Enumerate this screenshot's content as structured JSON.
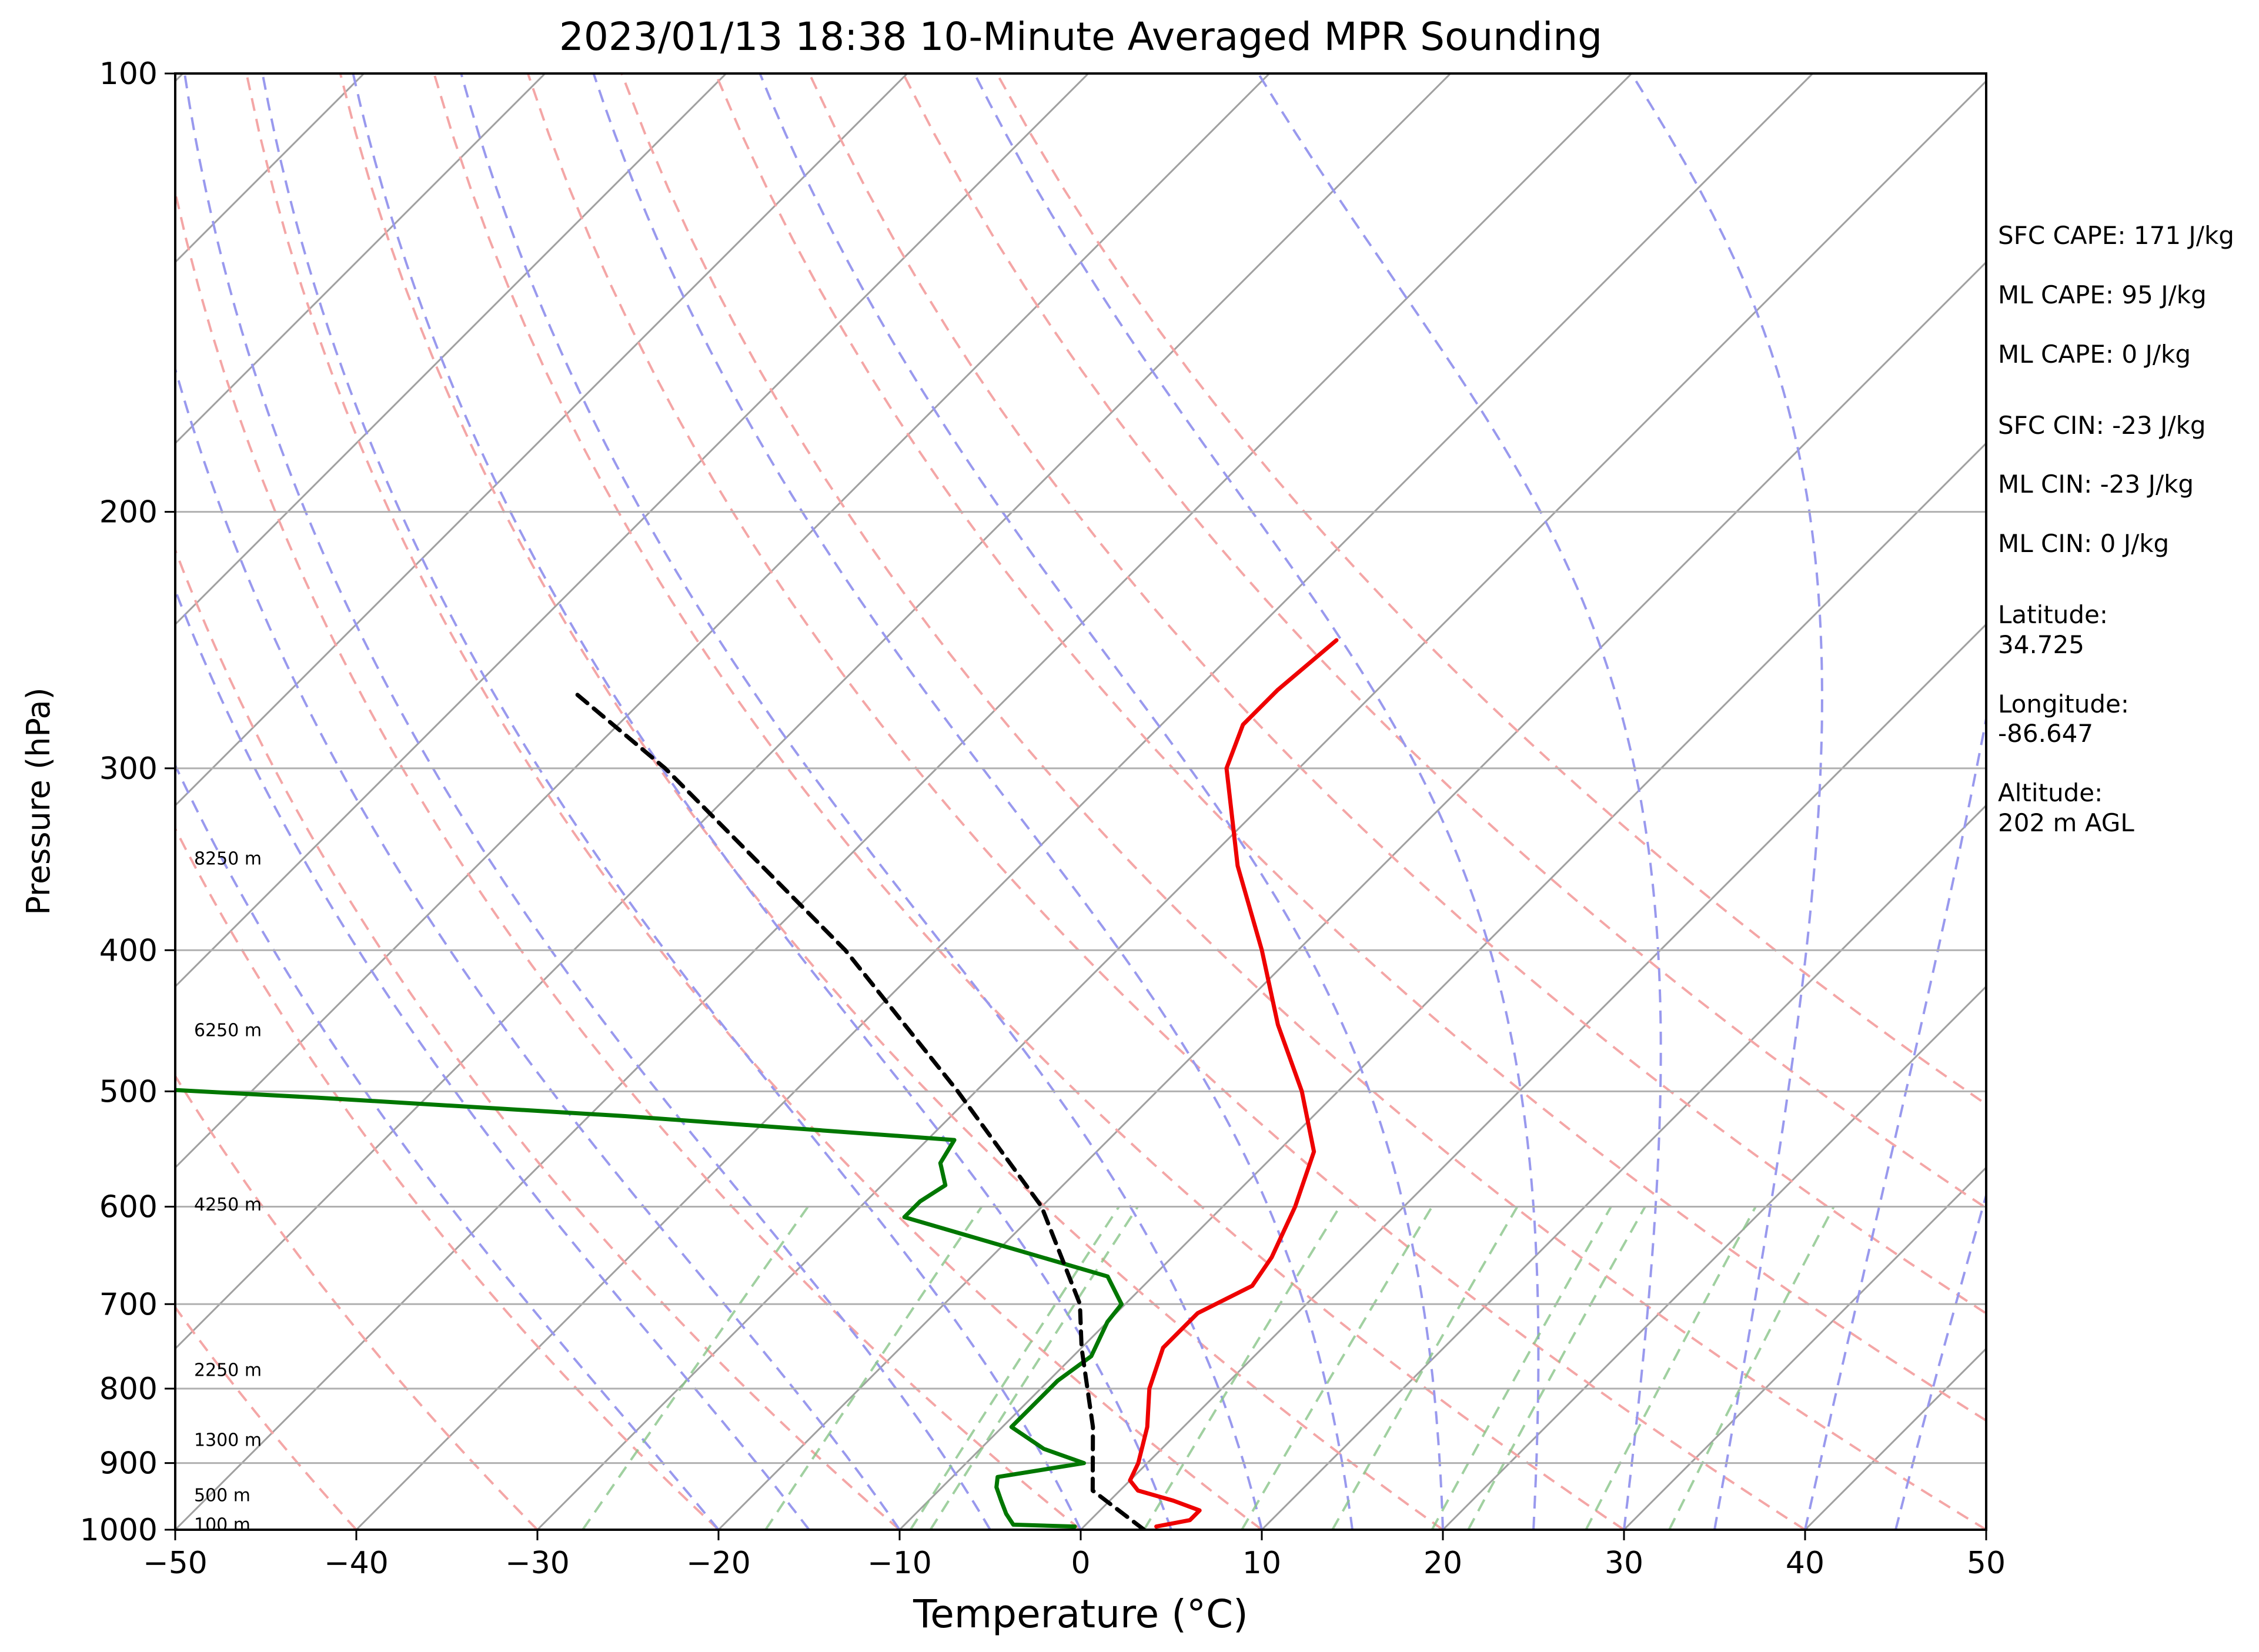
{
  "chart_data": {
    "type": "line",
    "title": "2023/01/13 18:38 10-Minute Averaged MPR Sounding",
    "xlabel": "Temperature (°C)",
    "ylabel": "Pressure (hPa)",
    "xlim": [
      -50,
      50
    ],
    "ylim": [
      1000,
      100
    ],
    "y_scale": "log",
    "x_ticks": [
      "−50",
      "−40",
      "−30",
      "−20",
      "−10",
      "0",
      "10",
      "20",
      "30",
      "40",
      "50"
    ],
    "x_tick_values": [
      -50,
      -40,
      -30,
      -20,
      -10,
      0,
      10,
      20,
      30,
      40,
      50
    ],
    "y_ticks": [
      "100",
      "200",
      "300",
      "400",
      "500",
      "600",
      "700",
      "800",
      "900",
      "1000"
    ],
    "y_tick_values": [
      100,
      200,
      300,
      400,
      500,
      600,
      700,
      800,
      900,
      1000
    ],
    "grid": true,
    "skew": true,
    "background_lines": {
      "isotherms_color": "#a0a0a0",
      "dry_adiabats_color": "#f4a6a6",
      "moist_adiabats_color": "#9999ee",
      "mixing_ratio_color": "#88c488",
      "dry_adiabats_surface_temp": [
        -50,
        -40,
        -30,
        -20,
        -10,
        0,
        10,
        20,
        30,
        40,
        50,
        60,
        70,
        80,
        90
      ],
      "moist_adiabats_surface_temp": [
        -20,
        -15,
        -10,
        -5,
        0,
        5,
        10,
        15,
        20,
        25,
        30,
        35,
        40,
        45
      ],
      "mixing_ratio_1000_temp": [
        -27.5,
        -17.4,
        -9.4,
        -8.3,
        3.5,
        8.9,
        13.9,
        19.4,
        21.4,
        27.9,
        32.5
      ]
    },
    "series": [
      {
        "color": "#ee0000",
        "points": [
          {
            "p": 995,
            "t": 4.0
          },
          {
            "p": 985,
            "t": 5.5
          },
          {
            "p": 970,
            "t": 5.5
          },
          {
            "p": 955,
            "t": 3.5
          },
          {
            "p": 940,
            "t": 1.0
          },
          {
            "p": 925,
            "t": 0.0
          },
          {
            "p": 900,
            "t": -0.5
          },
          {
            "p": 850,
            "t": -2.0
          },
          {
            "p": 800,
            "t": -4.0
          },
          {
            "p": 750,
            "t": -5.5
          },
          {
            "p": 710,
            "t": -5.5
          },
          {
            "p": 680,
            "t": -4.0
          },
          {
            "p": 650,
            "t": -4.5
          },
          {
            "p": 600,
            "t": -6.0
          },
          {
            "p": 550,
            "t": -8.0
          },
          {
            "p": 500,
            "t": -12.0
          },
          {
            "p": 450,
            "t": -17.0
          },
          {
            "p": 400,
            "t": -22.0
          },
          {
            "p": 350,
            "t": -28.0
          },
          {
            "p": 300,
            "t": -34.0
          },
          {
            "p": 280,
            "t": -35.5
          },
          {
            "p": 265,
            "t": -35.5
          },
          {
            "p": 245,
            "t": -35.0
          }
        ]
      },
      {
        "color": "#007700",
        "points": [
          {
            "p": 995,
            "t": -0.5
          },
          {
            "p": 992,
            "t": -4.0
          },
          {
            "p": 975,
            "t": -5.0
          },
          {
            "p": 955,
            "t": -6.0
          },
          {
            "p": 935,
            "t": -7.0
          },
          {
            "p": 920,
            "t": -7.5
          },
          {
            "p": 900,
            "t": -3.5
          },
          {
            "p": 880,
            "t": -6.5
          },
          {
            "p": 850,
            "t": -9.5
          },
          {
            "p": 825,
            "t": -9.5
          },
          {
            "p": 790,
            "t": -9.5
          },
          {
            "p": 760,
            "t": -9.0
          },
          {
            "p": 720,
            "t": -10.0
          },
          {
            "p": 700,
            "t": -10.2
          },
          {
            "p": 670,
            "t": -12.5
          },
          {
            "p": 610,
            "t": -27.0
          },
          {
            "p": 595,
            "t": -27.0
          },
          {
            "p": 580,
            "t": -26.5
          },
          {
            "p": 560,
            "t": -28.0
          },
          {
            "p": 540,
            "t": -28.5
          },
          {
            "p": 520,
            "t": -48.0
          },
          {
            "p": 505,
            "t": -66.0
          },
          {
            "p": 497,
            "t": -77.0
          },
          {
            "p": 495,
            "t": -97.0
          }
        ]
      },
      {
        "color": "#000000",
        "dashed": true,
        "points": [
          {
            "p": 1000,
            "t": 3.5
          },
          {
            "p": 940,
            "t": -1.5
          },
          {
            "p": 850,
            "t": -5.0
          },
          {
            "p": 750,
            "t": -10.0
          },
          {
            "p": 700,
            "t": -12.5
          },
          {
            "p": 600,
            "t": -20.0
          },
          {
            "p": 500,
            "t": -31.0
          },
          {
            "p": 400,
            "t": -45.0
          },
          {
            "p": 300,
            "t": -65.0
          },
          {
            "p": 265,
            "t": -74.5
          }
        ]
      }
    ],
    "height_labels": [
      {
        "text": "100 m",
        "p": 992
      },
      {
        "text": "500 m",
        "p": 947
      },
      {
        "text": "1300 m",
        "p": 868
      },
      {
        "text": "2250 m",
        "p": 777
      },
      {
        "text": "4250 m",
        "p": 598
      },
      {
        "text": "6250 m",
        "p": 454
      },
      {
        "text": "8250 m",
        "p": 346
      }
    ]
  },
  "stats": [
    "SFC CAPE: 171 J/kg",
    "ML CAPE: 95 J/kg",
    "ML CAPE: 0 J/kg",
    "SFC CIN: -23 J/kg",
    "ML CIN: -23 J/kg",
    "ML CIN: 0 J/kg"
  ],
  "location": {
    "latitude_label": "Latitude:",
    "latitude_value": "34.725",
    "longitude_label": "Longitude:",
    "longitude_value": "-86.647",
    "altitude_label": "Altitude:",
    "altitude_value": "202 m AGL"
  }
}
